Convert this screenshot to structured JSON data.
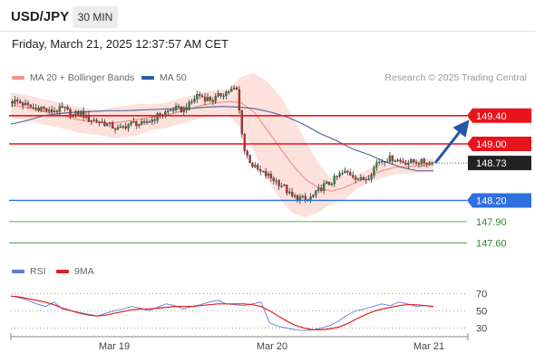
{
  "header": {
    "symbol": "USD/JPY",
    "timeframe": "30 MIN",
    "datetime": "Friday, March 21, 2025 12:37:57 AM CET",
    "credit": "Research © 2025 Trading Central"
  },
  "price_legend": [
    {
      "label": "MA 20 + Bollinger Bands",
      "color": "#f4938a"
    },
    {
      "label": "MA 50",
      "color": "#2b5aa3"
    }
  ],
  "rsi_legend": [
    {
      "label": "RSI",
      "color": "#5b7fd6"
    },
    {
      "label": "9MA",
      "color": "#e02020"
    }
  ],
  "chart_data": [
    {
      "type": "candlestick",
      "ylim": [
        147.45,
        149.82
      ],
      "x_ticks": [
        "Mar 19",
        "Mar 20",
        "Mar 21"
      ],
      "current_price": 148.73,
      "levels": [
        {
          "value": 149.4,
          "label": "149.40",
          "style": "resistance",
          "color": "#e8141b"
        },
        {
          "value": 149.0,
          "label": "149.00",
          "style": "resistance",
          "color": "#e8141b"
        },
        {
          "value": 148.73,
          "label": "148.73",
          "style": "current",
          "color": "#333333"
        },
        {
          "value": 148.2,
          "label": "148.20",
          "style": "support",
          "color": "#2f6fe0"
        },
        {
          "value": 147.9,
          "label": "147.90",
          "style": "target",
          "color": "#2a8a2a"
        },
        {
          "value": 147.6,
          "label": "147.60",
          "style": "target",
          "color": "#2a8a2a"
        }
      ],
      "close_path": [
        149.6,
        149.6,
        149.55,
        149.5,
        149.52,
        149.45,
        149.48,
        149.5,
        149.4,
        149.45,
        149.35,
        149.33,
        149.3,
        149.25,
        149.2,
        149.27,
        149.3,
        149.27,
        149.33,
        149.4,
        149.45,
        149.5,
        149.48,
        149.55,
        149.7,
        149.65,
        149.62,
        149.7,
        149.75,
        149.78,
        148.91,
        148.7,
        148.6,
        148.55,
        148.48,
        148.4,
        148.25,
        148.24,
        148.2,
        148.28,
        148.4,
        148.45,
        148.55,
        148.6,
        148.55,
        148.48,
        148.55,
        148.75,
        148.78,
        148.8,
        148.75,
        148.74,
        148.75,
        148.74,
        148.73
      ],
      "ma20_path": [
        149.55,
        149.52,
        149.48,
        149.44,
        149.4,
        149.35,
        149.32,
        149.3,
        149.3,
        149.32,
        149.35,
        149.38,
        149.4,
        149.45,
        149.5,
        149.55,
        149.58,
        149.6,
        149.58,
        149.45,
        149.2,
        148.95,
        148.7,
        148.5,
        148.38,
        148.33,
        148.38,
        148.46,
        148.55,
        148.62,
        148.67,
        148.68,
        148.69,
        148.7
      ],
      "ma50_path": [
        149.28,
        149.33,
        149.4,
        149.43,
        149.45,
        149.46,
        149.47,
        149.47,
        149.48,
        149.49,
        149.5,
        149.5,
        149.52,
        149.53,
        149.52,
        149.5,
        149.45,
        149.38,
        149.28,
        149.15,
        149.05,
        148.93,
        148.85,
        148.75,
        148.67,
        148.62,
        148.62
      ],
      "projection": {
        "from": 148.73,
        "to": 149.15
      }
    },
    {
      "type": "line",
      "name": "RSI panel",
      "ylim": [
        20,
        85
      ],
      "y_ticks": [
        "70",
        "50",
        "30"
      ],
      "series": [
        {
          "name": "RSI",
          "color": "#5b7fd6",
          "values": [
            67,
            65,
            62,
            58,
            55,
            60,
            52,
            50,
            48,
            46,
            44,
            47,
            50,
            52,
            55,
            53,
            50,
            54,
            58,
            56,
            52,
            55,
            57,
            60,
            62,
            58,
            57,
            56,
            58,
            60,
            36,
            32,
            30,
            28,
            27,
            28,
            30,
            33,
            38,
            45,
            50,
            52,
            55,
            58,
            56,
            60,
            58,
            55,
            56,
            55
          ]
        },
        {
          "name": "9MA",
          "color": "#e02020",
          "values": [
            67,
            66,
            64,
            62,
            60,
            57,
            53,
            50,
            47,
            45,
            44,
            45,
            47,
            49,
            51,
            52,
            52,
            53,
            54,
            55,
            55,
            55,
            56,
            57,
            58,
            58,
            58,
            58,
            57,
            55,
            50,
            44,
            38,
            33,
            30,
            28,
            28,
            29,
            31,
            35,
            40,
            45,
            49,
            52,
            54,
            56,
            57,
            57,
            56,
            55
          ]
        }
      ]
    }
  ]
}
